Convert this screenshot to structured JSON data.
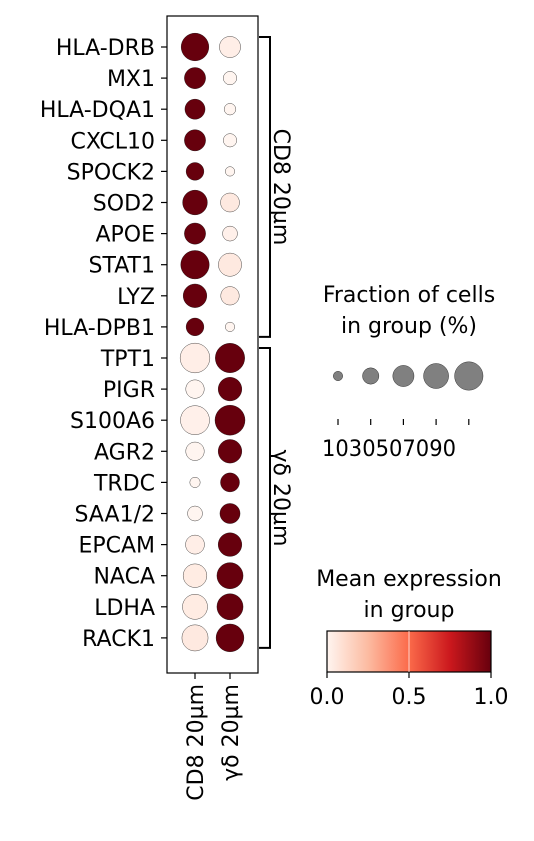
{
  "chart_data": {
    "type": "dotplot",
    "genes": [
      "HLA-DRB",
      "MX1",
      "HLA-DQA1",
      "CXCL10",
      "SPOCK2",
      "SOD2",
      "APOE",
      "STAT1",
      "LYZ",
      "HLA-DPB1",
      "TPT1",
      "PIGR",
      "S100A6",
      "AGR2",
      "TRDC",
      "SAA1/2",
      "EPCAM",
      "NACA",
      "LDHA",
      "RACK1"
    ],
    "groups": [
      "CD8 20µm",
      "γδ 20µm"
    ],
    "gene_groups": [
      {
        "label": "CD8 20µm",
        "start": 0,
        "end": 9
      },
      {
        "label": "γδ 20µm",
        "start": 10,
        "end": 19
      }
    ],
    "fraction_pct": [
      [
        85,
        50
      ],
      [
        50,
        20
      ],
      [
        45,
        15
      ],
      [
        50,
        20
      ],
      [
        35,
        10
      ],
      [
        68,
        40
      ],
      [
        50,
        25
      ],
      [
        90,
        60
      ],
      [
        62,
        38
      ],
      [
        35,
        10
      ],
      [
        98,
        96
      ],
      [
        38,
        62
      ],
      [
        94,
        100
      ],
      [
        38,
        62
      ],
      [
        12,
        40
      ],
      [
        25,
        45
      ],
      [
        40,
        62
      ],
      [
        62,
        76
      ],
      [
        70,
        76
      ],
      [
        76,
        86
      ]
    ],
    "mean_expr": [
      [
        1.0,
        0.03
      ],
      [
        1.0,
        0.0
      ],
      [
        1.0,
        0.0
      ],
      [
        1.0,
        0.0
      ],
      [
        1.0,
        0.0
      ],
      [
        1.0,
        0.05
      ],
      [
        1.0,
        0.02
      ],
      [
        1.0,
        0.05
      ],
      [
        1.0,
        0.05
      ],
      [
        1.0,
        0.0
      ],
      [
        0.03,
        1.0
      ],
      [
        0.0,
        1.0
      ],
      [
        0.02,
        1.0
      ],
      [
        0.0,
        1.0
      ],
      [
        0.0,
        1.0
      ],
      [
        0.0,
        1.0
      ],
      [
        0.03,
        1.0
      ],
      [
        0.04,
        1.0
      ],
      [
        0.04,
        1.0
      ],
      [
        0.05,
        1.0
      ]
    ],
    "size_legend": {
      "title_lines": [
        "Fraction of cells",
        "in group (%)"
      ],
      "values": [
        10,
        30,
        50,
        70,
        90
      ],
      "labels": [
        "10",
        "30",
        "50",
        "70",
        "90"
      ]
    },
    "color_legend": {
      "title_lines": [
        "Mean expression",
        "in group"
      ],
      "ticks": [
        0.0,
        0.5,
        1.0
      ],
      "tick_labels": [
        "0.0",
        "0.5",
        "1.0"
      ],
      "colormap": [
        "#fff5f0",
        "#fcbba1",
        "#fb6a4a",
        "#cb181d",
        "#67000d"
      ]
    }
  }
}
